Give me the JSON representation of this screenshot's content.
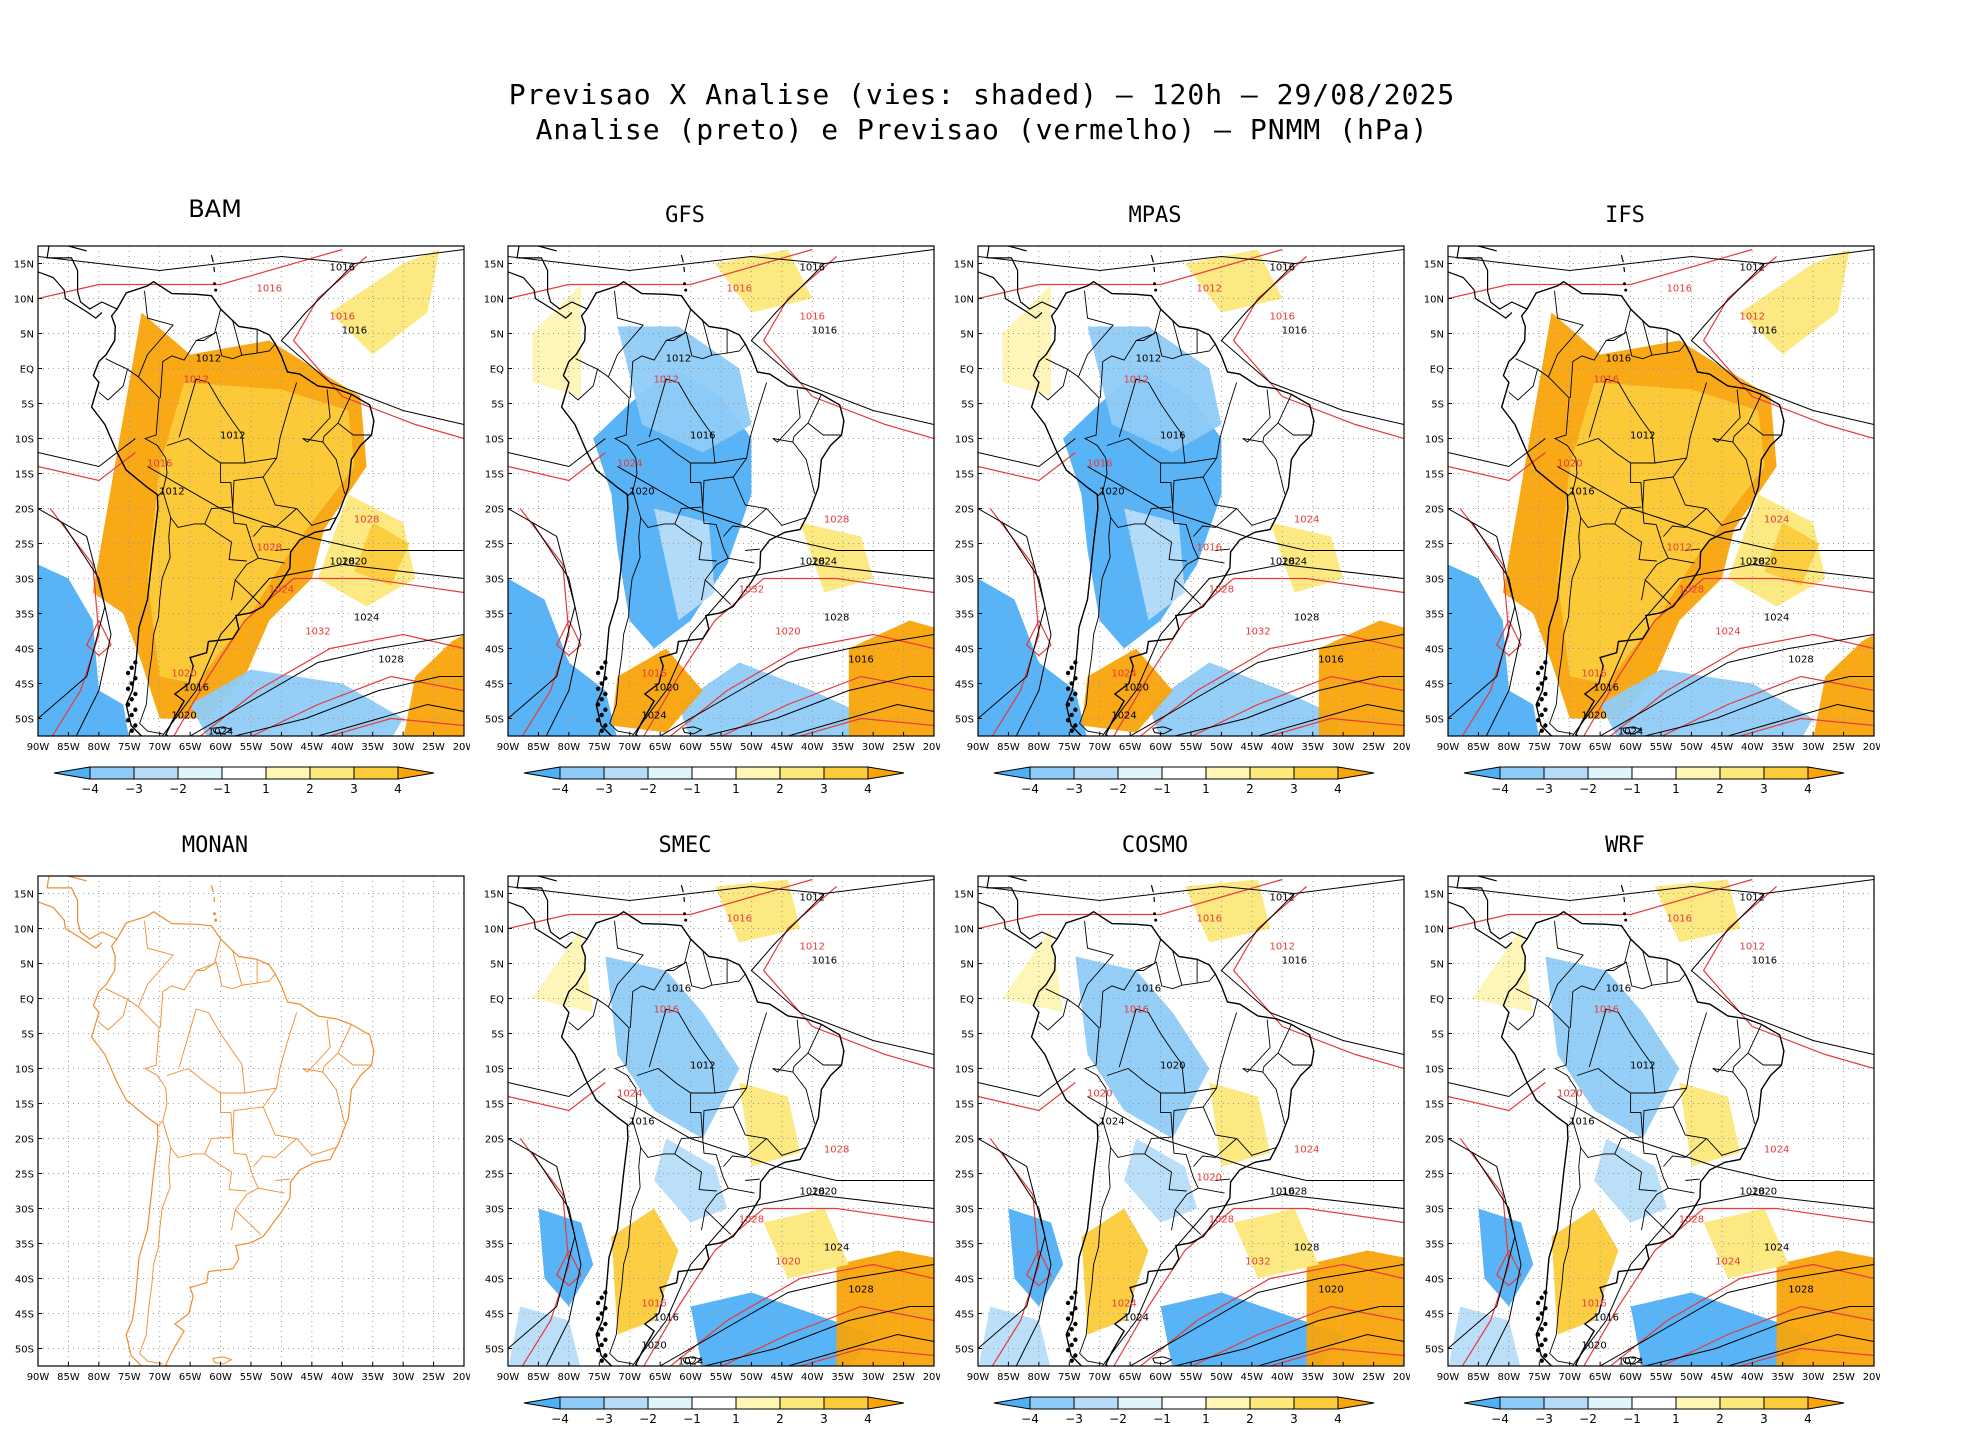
{
  "title": {
    "line1": "Previsao X Analise (vies: shaded) — 120h — 29/08/2025",
    "line2": "Analise (preto) e Previsao (vermelho) — PNMM (hPa)"
  },
  "colors": {
    "neg4": "#4fb0f5",
    "neg3": "#8fcbf7",
    "neg2": "#b7dcf9",
    "neg1": "#dff3fb",
    "zero": "#ffffff",
    "pos1": "#fdf6b4",
    "pos2": "#fde87a",
    "pos3": "#fccb3a",
    "pos4": "#f9a40a",
    "analysis_contour": "#000000",
    "forecast_contour": "#e83a3a",
    "coastline": "#000000",
    "monan_coastline": "#f08c2c"
  },
  "axes": {
    "lat_labels": [
      "15N",
      "10N",
      "5N",
      "EQ",
      "5S",
      "10S",
      "15S",
      "20S",
      "25S",
      "30S",
      "35S",
      "40S",
      "45S",
      "50S"
    ],
    "lon_labels": [
      "90W",
      "85W",
      "80W",
      "75W",
      "70W",
      "65W",
      "60W",
      "55W",
      "50W",
      "45W",
      "40W",
      "35W",
      "30W",
      "25W",
      "20W"
    ]
  },
  "colorbar": {
    "labels": [
      "−4",
      "−3",
      "−2",
      "−1",
      "1",
      "2",
      "3",
      "4"
    ]
  },
  "panels": [
    {
      "name": "BAM",
      "has_data": true,
      "bias": "warm",
      "labels_black": [
        "1016",
        "1016",
        "1012",
        "1012",
        "1012",
        "1020",
        "1024",
        "1028",
        "1028",
        "1016",
        "1020",
        "1024"
      ],
      "labels_red": [
        "1016",
        "1016",
        "1012",
        "1016",
        "1028",
        "1024",
        "1032",
        "1020",
        "1028"
      ]
    },
    {
      "name": "GFS",
      "has_data": true,
      "bias": "cold",
      "labels_black": [
        "1016",
        "1016",
        "1012",
        "1016",
        "1020",
        "1024",
        "1028",
        "1028",
        "1016",
        "1020",
        "1024"
      ],
      "labels_red": [
        "1016",
        "1016",
        "1012",
        "1024",
        "1028",
        "1032",
        "1020",
        "1016"
      ]
    },
    {
      "name": "MPAS",
      "has_data": true,
      "bias": "cold",
      "labels_black": [
        "1016",
        "1016",
        "1012",
        "1016",
        "1020",
        "1024",
        "1028",
        "1028",
        "1016",
        "1020",
        "1024"
      ],
      "labels_red": [
        "1012",
        "1016",
        "1012",
        "1016",
        "1024",
        "1028",
        "1032",
        "1024",
        "1016"
      ]
    },
    {
      "name": "IFS",
      "has_data": true,
      "bias": "warm",
      "labels_black": [
        "1012",
        "1016",
        "1016",
        "1012",
        "1016",
        "1020",
        "1024",
        "1028",
        "1028",
        "1016",
        "1020",
        "1024"
      ],
      "labels_red": [
        "1016",
        "1012",
        "1016",
        "1020",
        "1024",
        "1028",
        "1024",
        "1016",
        "1012"
      ]
    },
    {
      "name": "MONAN",
      "has_data": false,
      "bias": "none",
      "labels_black": [],
      "labels_red": []
    },
    {
      "name": "SMEC",
      "has_data": true,
      "bias": "mixed",
      "labels_black": [
        "1012",
        "1016",
        "1016",
        "1012",
        "1016",
        "1020",
        "1024",
        "1028",
        "1028",
        "1016",
        "1020",
        "1024"
      ],
      "labels_red": [
        "1016",
        "1012",
        "1016",
        "1024",
        "1028",
        "1028",
        "1020",
        "1016"
      ]
    },
    {
      "name": "COSMO",
      "has_data": true,
      "bias": "mixed",
      "labels_black": [
        "1012",
        "1016",
        "1016",
        "1020",
        "1024",
        "1028",
        "1028",
        "1016",
        "1020",
        "1024"
      ],
      "labels_red": [
        "1016",
        "1012",
        "1016",
        "1020",
        "1024",
        "1028",
        "1032",
        "1024",
        "1020"
      ]
    },
    {
      "name": "WRF",
      "has_data": true,
      "bias": "mixed",
      "labels_black": [
        "1012",
        "1016",
        "1016",
        "1012",
        "1016",
        "1020",
        "1024",
        "1028",
        "1028",
        "1016",
        "1020",
        "1024"
      ],
      "labels_red": [
        "1016",
        "1012",
        "1016",
        "1020",
        "1024",
        "1028",
        "1024",
        "1016"
      ]
    }
  ]
}
